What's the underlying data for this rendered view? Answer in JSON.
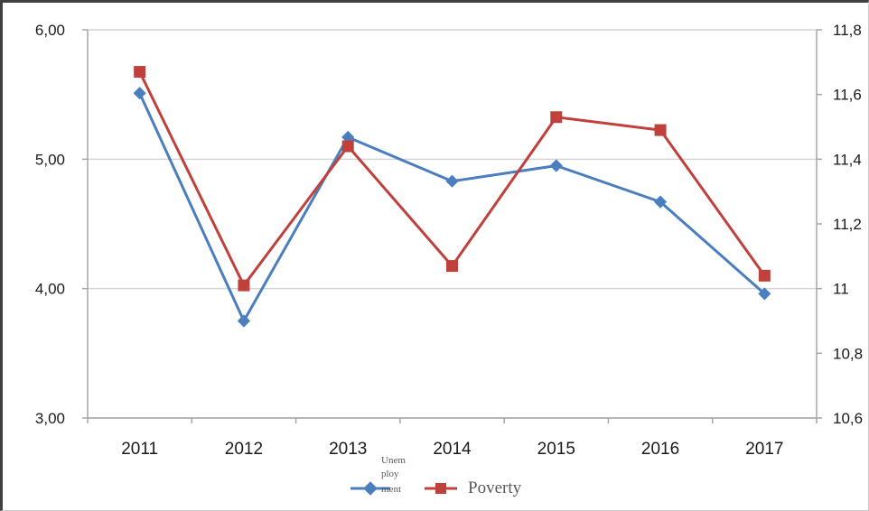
{
  "chart_data": {
    "type": "line",
    "title": "",
    "xlabel": "",
    "ylabel": "",
    "categories": [
      "2011",
      "2012",
      "2013",
      "2014",
      "2015",
      "2016",
      "2017"
    ],
    "y_left": {
      "range": [
        3,
        6
      ],
      "ticks": [
        3,
        4,
        5,
        6
      ],
      "tick_labels": [
        "3,00",
        "4,00",
        "5,00",
        "6,00"
      ]
    },
    "y_right": {
      "range": [
        10.6,
        11.8
      ],
      "ticks": [
        10.6,
        10.8,
        11,
        11.2,
        11.4,
        11.6,
        11.8
      ],
      "tick_labels": [
        "10,6",
        "10,8",
        "11",
        "11,2",
        "11,4",
        "11,6",
        "11,8"
      ]
    },
    "grid": true,
    "legend_position": "bottom",
    "series": [
      {
        "name": "Unemployment",
        "legend_lines": [
          "Unem",
          "ploy",
          "ment"
        ],
        "axis": "left",
        "color": "#4a7ebf",
        "marker": "diamond",
        "values": [
          5.51,
          3.75,
          5.17,
          4.83,
          4.95,
          4.67,
          3.96
        ]
      },
      {
        "name": "Poverty",
        "axis": "right",
        "color": "#c0403c",
        "marker": "square",
        "values": [
          11.67,
          11.01,
          11.44,
          11.07,
          11.53,
          11.49,
          11.04
        ]
      }
    ]
  }
}
